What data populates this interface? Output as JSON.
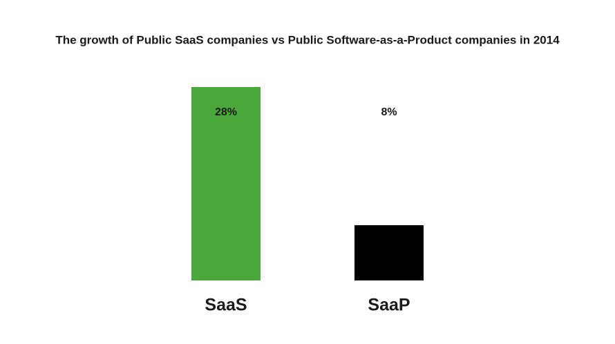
{
  "chart_data": {
    "type": "bar",
    "title": "The growth of Public SaaS companies vs Public Software-as-a-Product companies in 2014",
    "categories": [
      "SaaS",
      "SaaP"
    ],
    "values": [
      28,
      8
    ],
    "value_labels": [
      "28%",
      "8%"
    ],
    "colors": [
      "#4aa83b",
      "#000000"
    ]
  }
}
